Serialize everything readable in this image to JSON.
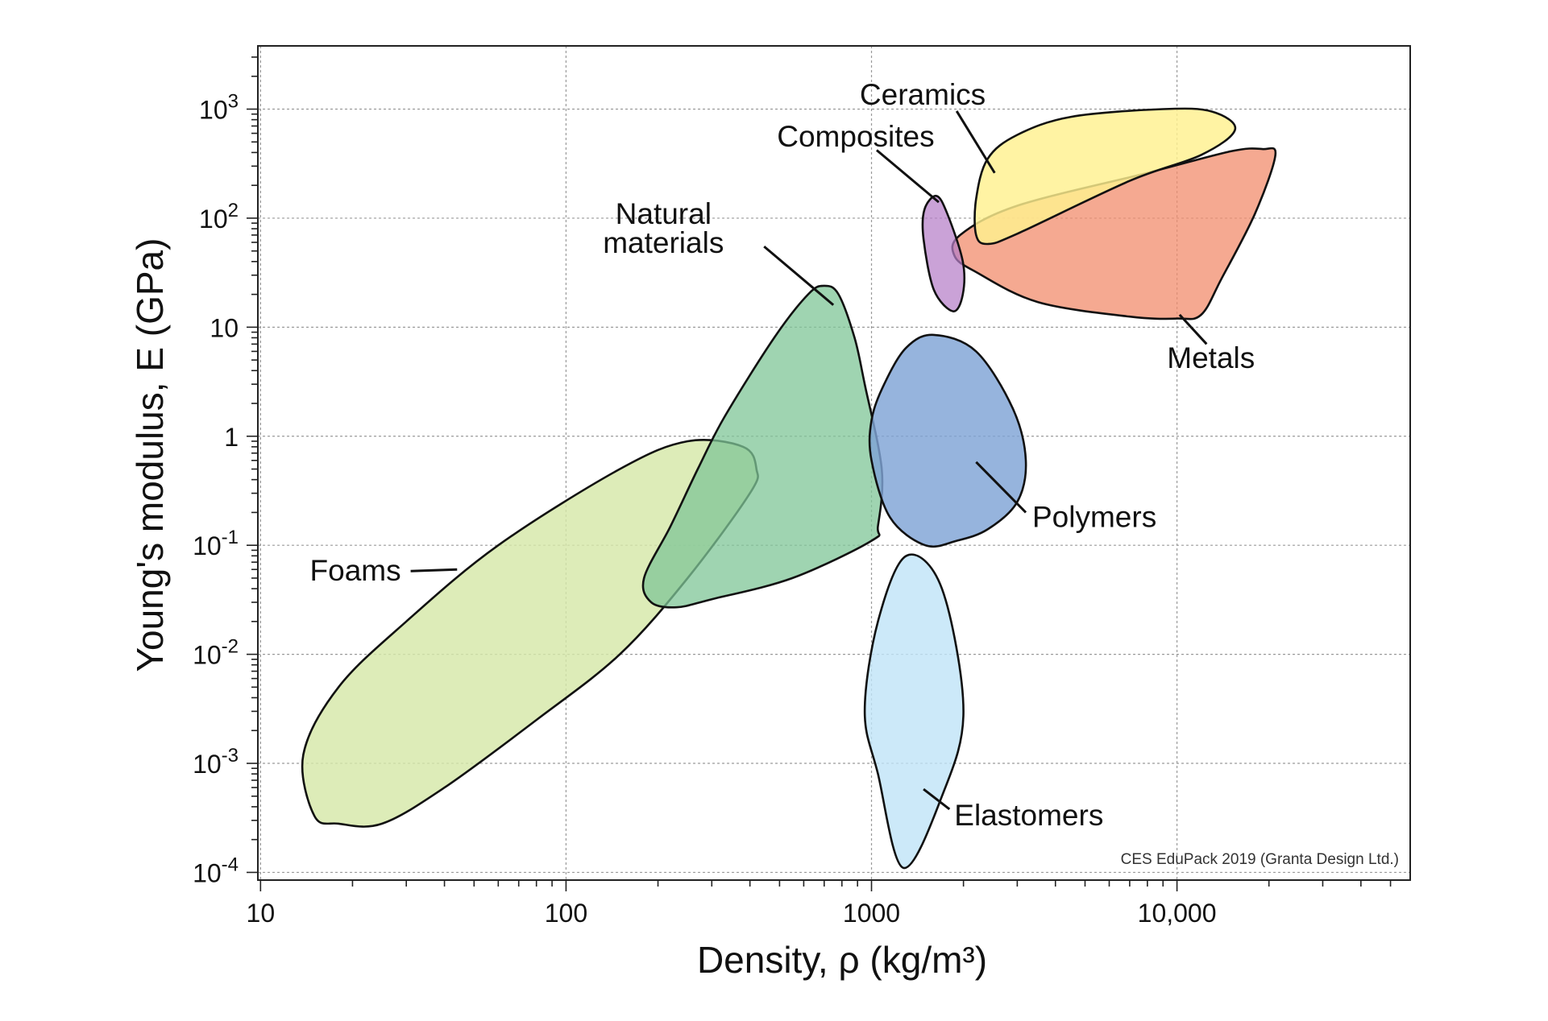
{
  "chart_data": {
    "type": "scatter",
    "subtype": "material-property-bubble-chart",
    "xlabel": "Density, ρ  (kg/m³)",
    "ylabel": "Young's modulus, E (GPa)",
    "x_scale": "log",
    "y_scale": "log",
    "xlim": [
      9.8,
      58000
    ],
    "ylim": [
      8.5e-05,
      3800
    ],
    "grid": true,
    "x_ticks": [
      {
        "value": 10,
        "label": "10"
      },
      {
        "value": 100,
        "label": "100"
      },
      {
        "value": 1000,
        "label": "1000"
      },
      {
        "value": 10000,
        "label": "10,000"
      }
    ],
    "y_ticks": [
      {
        "value": 0.0001,
        "base": "10",
        "exp": "-4"
      },
      {
        "value": 0.001,
        "base": "10",
        "exp": "-3"
      },
      {
        "value": 0.01,
        "base": "10",
        "exp": "-2"
      },
      {
        "value": 0.1,
        "base": "10",
        "exp": "-1"
      },
      {
        "value": 1,
        "base": "1",
        "exp": ""
      },
      {
        "value": 10,
        "base": "10",
        "exp": ""
      },
      {
        "value": 100,
        "base": "10",
        "exp": "2"
      },
      {
        "value": 1000,
        "base": "10",
        "exp": "3"
      }
    ],
    "regions": [
      {
        "name": "Foams",
        "color": "#d6e8a8",
        "opacity": 0.82,
        "outline": [
          [
            15,
            0.00033
          ],
          [
            18,
            0.00028
          ],
          [
            25,
            0.00028
          ],
          [
            40,
            0.0006
          ],
          [
            80,
            0.0025
          ],
          [
            150,
            0.01
          ],
          [
            250,
            0.05
          ],
          [
            400,
            0.3
          ],
          [
            420,
            0.5
          ],
          [
            380,
            0.8
          ],
          [
            250,
            0.9
          ],
          [
            150,
            0.5
          ],
          [
            60,
            0.1
          ],
          [
            30,
            0.02
          ],
          [
            18,
            0.005
          ],
          [
            13.8,
            0.0012
          ]
        ],
        "leader": [
          [
            44,
            0.06
          ],
          [
            31,
            0.058
          ]
        ],
        "label_at": [
          31,
          0.058
        ]
      },
      {
        "name": "Natural materials",
        "label_lines": [
          "Natural",
          "materials"
        ],
        "color": "#7fc697",
        "opacity": 0.75,
        "outline": [
          [
            700,
            24
          ],
          [
            780,
            20
          ],
          [
            880,
            8
          ],
          [
            950,
            3
          ],
          [
            1080,
            0.5
          ],
          [
            1050,
            0.15
          ],
          [
            1000,
            0.11
          ],
          [
            550,
            0.05
          ],
          [
            300,
            0.032
          ],
          [
            230,
            0.027
          ],
          [
            190,
            0.03
          ],
          [
            180,
            0.05
          ],
          [
            220,
            0.15
          ],
          [
            270,
            0.5
          ],
          [
            330,
            1.5
          ],
          [
            480,
            8
          ],
          [
            620,
            20
          ]
        ],
        "leader": [
          [
            750,
            16
          ],
          [
            445,
            55
          ]
        ],
        "label_at": [
          300,
          55
        ]
      },
      {
        "name": "Polymers",
        "color": "#7fa3d6",
        "opacity": 0.82,
        "outline": [
          [
            1600,
            8.5
          ],
          [
            2200,
            6
          ],
          [
            2900,
            1.8
          ],
          [
            3200,
            0.6
          ],
          [
            3000,
            0.25
          ],
          [
            2400,
            0.14
          ],
          [
            1900,
            0.11
          ],
          [
            1500,
            0.1
          ],
          [
            1150,
            0.18
          ],
          [
            1000,
            0.6
          ],
          [
            1000,
            1.4
          ],
          [
            1100,
            3
          ],
          [
            1300,
            6.5
          ]
        ],
        "leader": [
          [
            2200,
            0.58
          ],
          [
            3200,
            0.2
          ]
        ],
        "label_at": [
          3200,
          0.2
        ]
      },
      {
        "name": "Elastomers",
        "color": "#bfe3f7",
        "opacity": 0.8,
        "outline": [
          [
            1300,
            0.08
          ],
          [
            1700,
            0.04
          ],
          [
            2000,
            0.003
          ],
          [
            1700,
            0.0005
          ],
          [
            1270,
            0.00011
          ],
          [
            1050,
            0.0008
          ],
          [
            950,
            0.003
          ],
          [
            1050,
            0.02
          ]
        ],
        "leader": [
          [
            1480,
            0.00058
          ],
          [
            1800,
            0.00038
          ]
        ],
        "label_at": [
          1800,
          0.00038
        ]
      },
      {
        "name": "Metals",
        "color": "#f28c6c",
        "opacity": 0.75,
        "outline": [
          [
            19000,
            430
          ],
          [
            21000,
            380
          ],
          [
            18000,
            110
          ],
          [
            14000,
            28
          ],
          [
            12000,
            13
          ],
          [
            10000,
            12
          ],
          [
            7000,
            12.5
          ],
          [
            3500,
            17
          ],
          [
            2200,
            32
          ],
          [
            1870,
            45
          ],
          [
            1950,
            70
          ],
          [
            3000,
            130
          ],
          [
            8000,
            260
          ],
          [
            15000,
            410
          ]
        ],
        "leader": [
          [
            10200,
            13
          ],
          [
            12500,
            7
          ]
        ],
        "label_at": [
          11000,
          5
        ]
      },
      {
        "name": "Ceramics",
        "color": "#fff08f",
        "opacity": 0.82,
        "outline": [
          [
            9000,
            1000
          ],
          [
            13000,
            950
          ],
          [
            15500,
            650
          ],
          [
            12000,
            380
          ],
          [
            7000,
            220
          ],
          [
            3000,
            72
          ],
          [
            2400,
            58
          ],
          [
            2200,
            70
          ],
          [
            2200,
            150
          ],
          [
            2400,
            350
          ],
          [
            3000,
            580
          ],
          [
            4500,
            850
          ]
        ],
        "leader": [
          [
            2530,
            260
          ],
          [
            1900,
            960
          ]
        ],
        "label_at": [
          1900,
          960
        ]
      },
      {
        "name": "Composites",
        "color": "#b57ec8",
        "opacity": 0.72,
        "outline": [
          [
            1630,
            160
          ],
          [
            1770,
            110
          ],
          [
            1990,
            40
          ],
          [
            1990,
            20
          ],
          [
            1850,
            14
          ],
          [
            1600,
            22
          ],
          [
            1480,
            65
          ],
          [
            1490,
            120
          ]
        ],
        "leader": [
          [
            1660,
            140
          ],
          [
            1040,
            420
          ]
        ],
        "label_at": [
          740,
          440
        ]
      }
    ],
    "annotation": "CES EduPack 2019 (Granta Design Ltd.)"
  }
}
